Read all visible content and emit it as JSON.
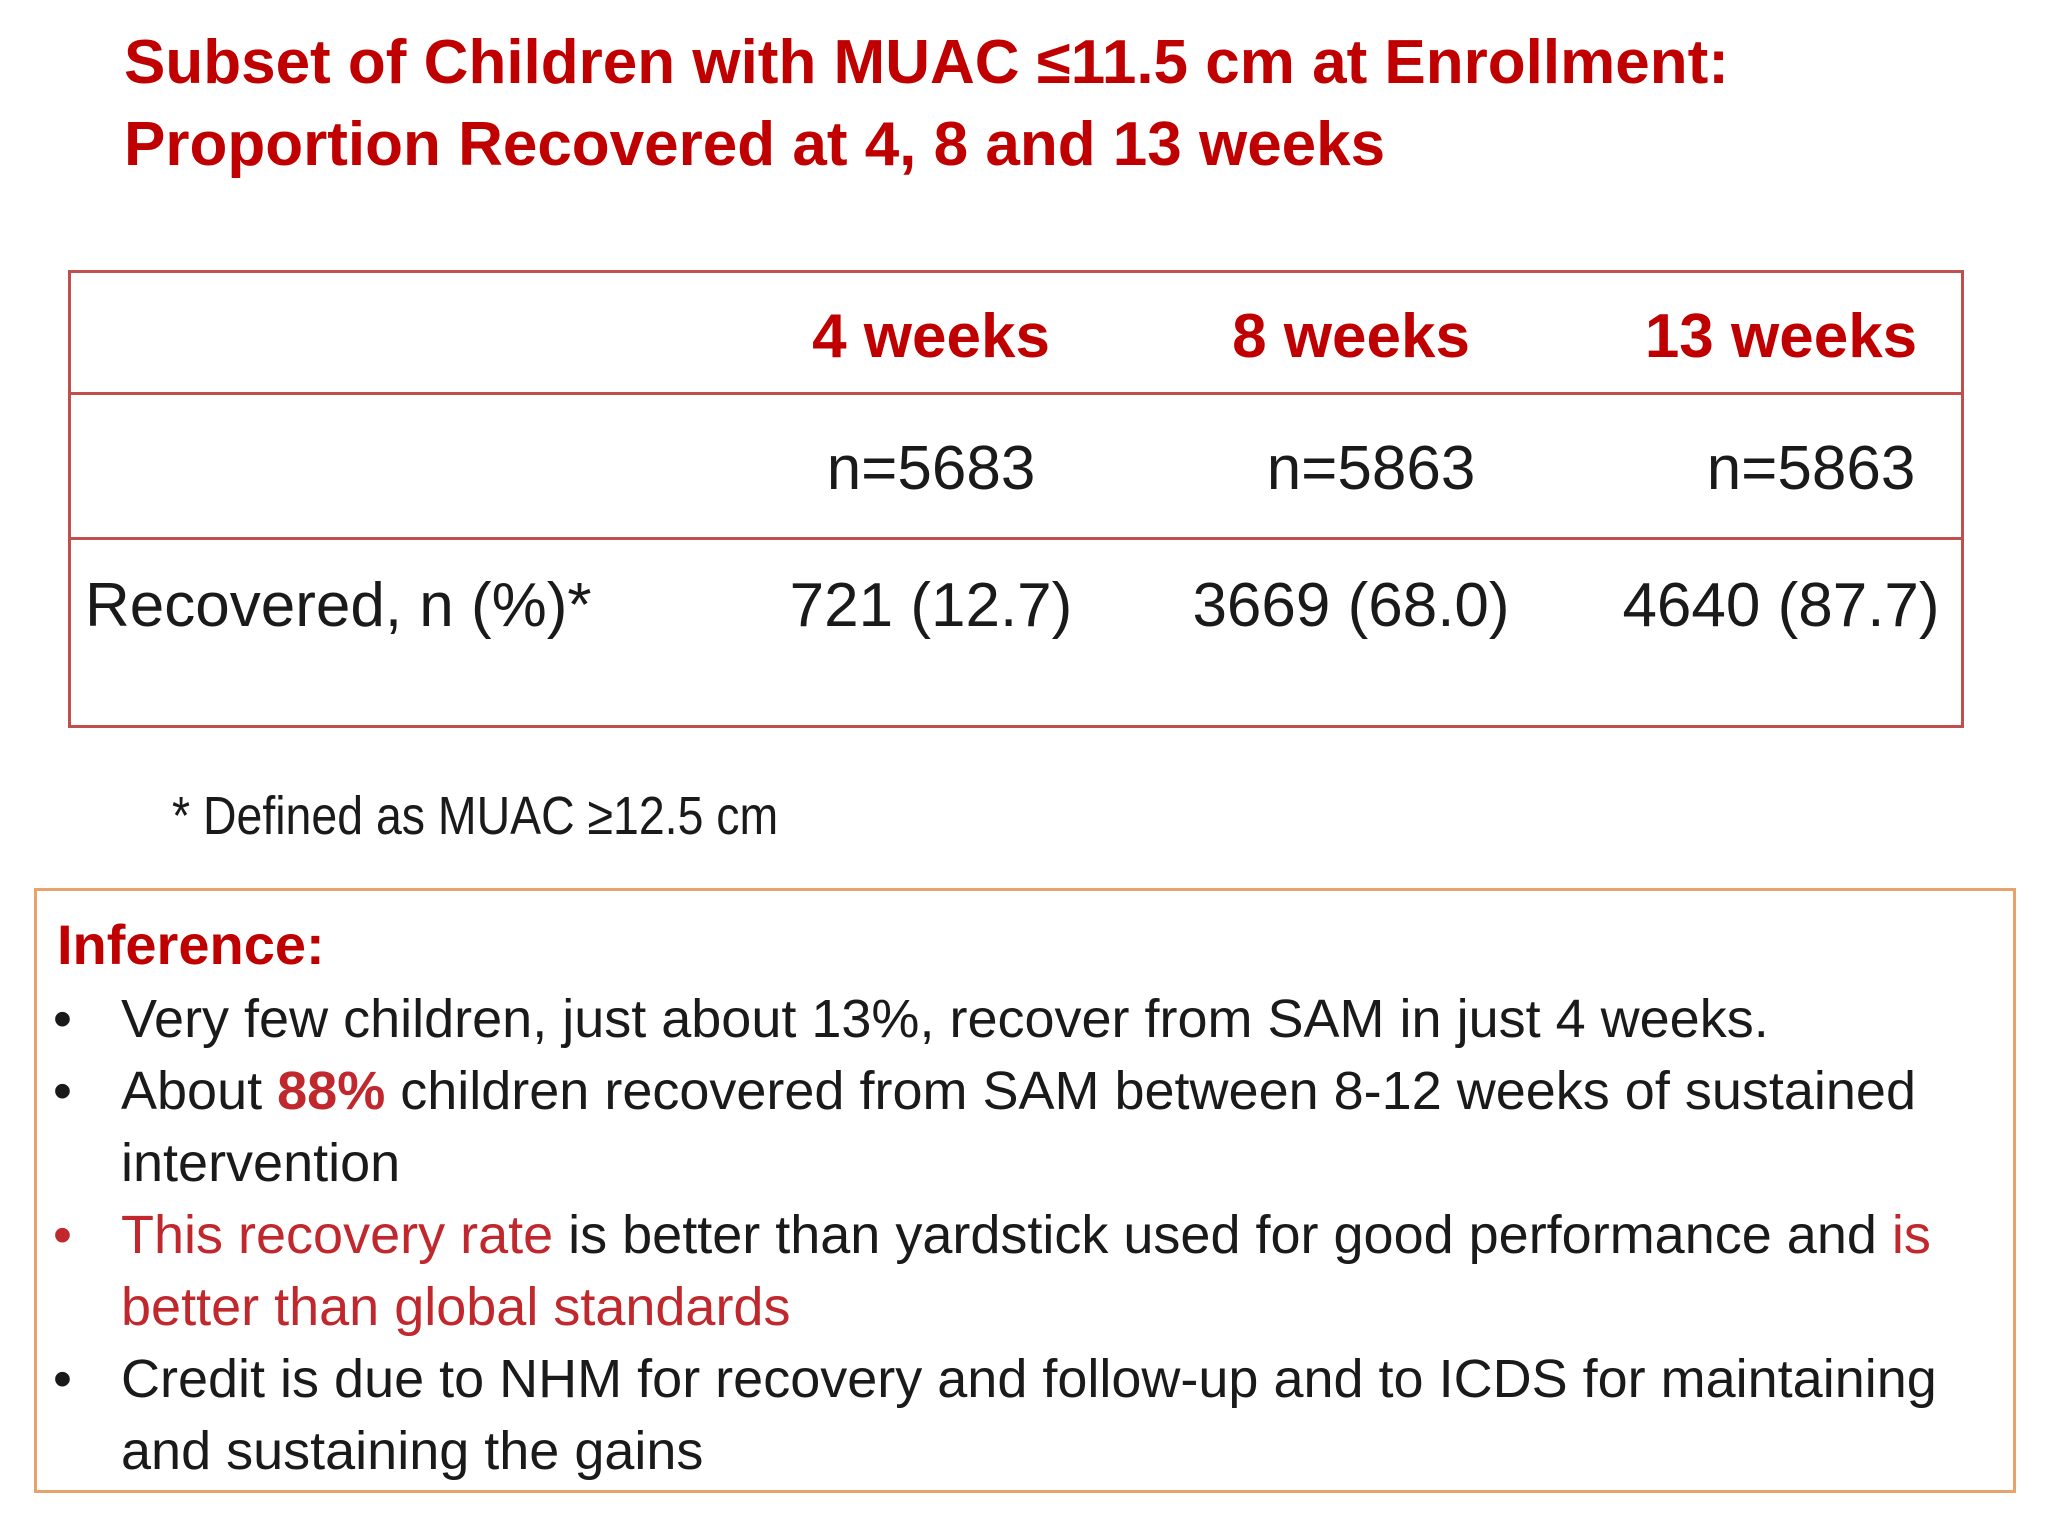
{
  "title": {
    "line1": "Subset of Children with MUAC ≤11.5 cm at Enrollment:",
    "line2": "Proportion Recovered at 4, 8 and 13 weeks"
  },
  "table": {
    "columns": [
      "4 weeks",
      "8 weeks",
      "13 weeks"
    ],
    "n_values": [
      "n=5683",
      "n=5863",
      "n=5863"
    ],
    "recovered_label": "Recovered, n (%)*",
    "recovered_values": [
      "721 (12.7)",
      "3669 (68.0)",
      "4640 (87.7)"
    ]
  },
  "footnote": "* Defined as MUAC ≥12.5 cm",
  "inference": {
    "title": "Inference:",
    "bullet_char": "•",
    "bullet1": "Very few children, just about 13%, recover from SAM in just 4 weeks.",
    "bullet2_pre": "About ",
    "bullet2_highlight": "88%",
    "bullet2_post": " children recovered from SAM between 8-12 weeks of sustained intervention",
    "bullet3_red1": "This recovery rate",
    "bullet3_mid": " is better than yardstick used for good performance and ",
    "bullet3_red2": "is better than global standards",
    "bullet4": "Credit is due to NHM for recovery and follow-up and to ICDS for maintaining and sustaining the gains"
  },
  "colors": {
    "title_red": "#c00000",
    "table_border": "#c0504d",
    "inference_border": "#e8a36a",
    "text": "#1a1a1a"
  }
}
